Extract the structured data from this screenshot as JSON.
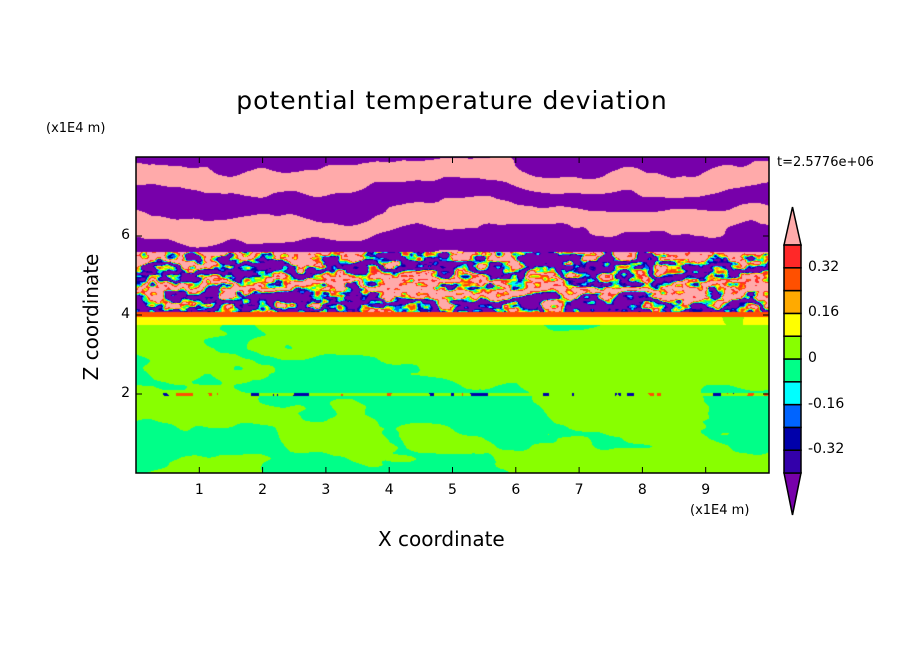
{
  "chart_data": {
    "type": "heatmap",
    "title": "potential temperature deviation",
    "xlabel": "X coordinate",
    "ylabel": "Z coordinate",
    "x_unit": "(x1E4 m)",
    "y_unit": "(x1E4 m)",
    "time_label": "t=2.5776e+06",
    "xlim": [
      0,
      10
    ],
    "ylim": [
      0,
      8
    ],
    "x_ticks": [
      "1",
      "2",
      "3",
      "4",
      "5",
      "6",
      "7",
      "8",
      "9"
    ],
    "y_ticks": [
      "2",
      "4",
      "6"
    ],
    "colorbar": {
      "levels": [
        -0.4,
        -0.32,
        -0.24,
        -0.16,
        -0.08,
        0,
        0.08,
        0.16,
        0.24,
        0.32,
        0.4
      ],
      "labels": [
        "0.32",
        "0.16",
        "0",
        "-0.16",
        "-0.32"
      ],
      "label_values": [
        0.32,
        0.16,
        0,
        -0.16,
        -0.32
      ],
      "colors_low_to_high": [
        "#3300aa",
        "#0000aa",
        "#0064ff",
        "#00ffff",
        "#00ff88",
        "#88ff00",
        "#ffff00",
        "#ffaa00",
        "#ff5000",
        "#ff2828"
      ],
      "under_color": "#7700aa",
      "over_color": "#ffaaaa"
    },
    "regions": [
      {
        "z_range": [
          0,
          1.95
        ],
        "description_values": [
          -0.08,
          0.08
        ]
      },
      {
        "z_range": [
          2.05,
          3.75
        ],
        "description_values": [
          -0.08,
          0.08
        ]
      },
      {
        "z_range": [
          3.75,
          4.1
        ],
        "description_values": [
          0.0,
          0.24
        ]
      },
      {
        "z_range": [
          4.1,
          5.6
        ],
        "description_values": [
          -0.5,
          0.5
        ]
      },
      {
        "z_range": [
          5.6,
          8
        ],
        "description_values": [
          -0.5,
          0.5
        ]
      }
    ]
  }
}
